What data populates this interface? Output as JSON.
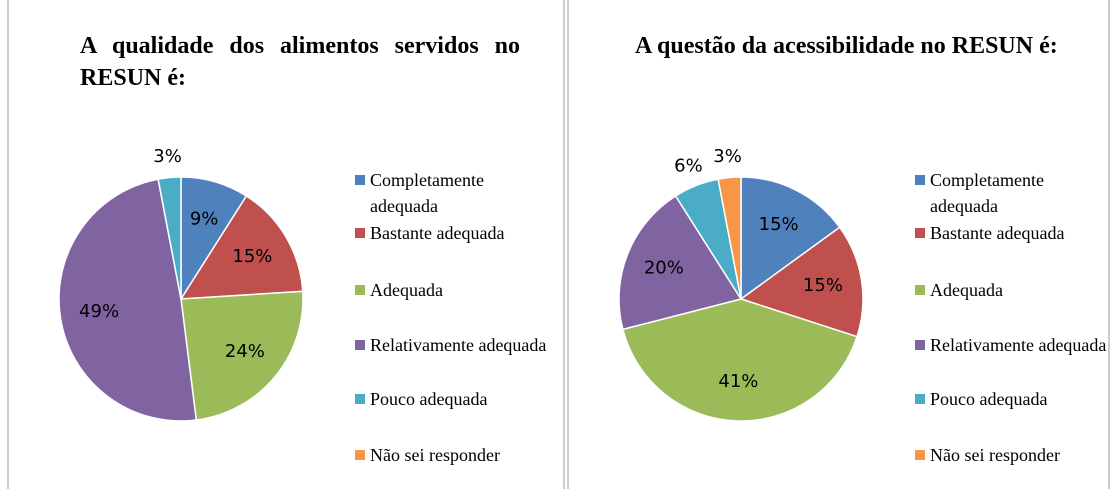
{
  "chart_data": [
    {
      "type": "pie",
      "title": "A qualidade dos alimentos servidos no RESUN é:",
      "categories": [
        "Completamente adequada",
        "Bastante adequada",
        "Adequada",
        "Relativamente adequada",
        "Pouco adequada",
        "Não sei responder"
      ],
      "values": [
        9,
        15,
        24,
        49,
        3,
        0
      ],
      "value_labels": [
        "9%",
        "15%",
        "24%",
        "49%",
        "3%",
        null
      ],
      "colors": [
        "#4f81bd",
        "#c0504d",
        "#9bbb59",
        "#8064a2",
        "#4bacc6",
        "#f79646"
      ]
    },
    {
      "type": "pie",
      "title": "A questão da acessibilidade no RESUN é:",
      "categories": [
        "Completamente adequada",
        "Bastante adequada",
        "Adequada",
        "Relativamente adequada",
        "Pouco adequada",
        "Não sei responder"
      ],
      "values": [
        15,
        15,
        41,
        20,
        6,
        3
      ],
      "value_labels": [
        "15%",
        "15%",
        "41%",
        "20%",
        "6%",
        "3%"
      ],
      "colors": [
        "#4f81bd",
        "#c0504d",
        "#9bbb59",
        "#8064a2",
        "#4bacc6",
        "#f79646"
      ]
    }
  ]
}
